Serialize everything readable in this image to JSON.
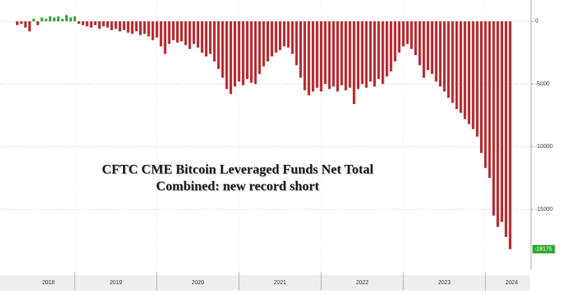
{
  "chart_data": {
    "type": "bar",
    "annotation": [
      "CFTC CME Bitcoin Leveraged Funds Net Total",
      "Combined: new record short"
    ],
    "x": [
      2018.3,
      2018.35,
      2018.4,
      2018.45,
      2018.5,
      2018.55,
      2018.6,
      2018.65,
      2018.7,
      2018.75,
      2018.8,
      2018.85,
      2018.9,
      2018.95,
      2019.0,
      2019.05,
      2019.1,
      2019.15,
      2019.2,
      2019.25,
      2019.3,
      2019.35,
      2019.4,
      2019.45,
      2019.5,
      2019.55,
      2019.6,
      2019.65,
      2019.7,
      2019.75,
      2019.8,
      2019.85,
      2019.9,
      2019.95,
      2020.0,
      2020.05,
      2020.1,
      2020.15,
      2020.2,
      2020.25,
      2020.3,
      2020.35,
      2020.4,
      2020.45,
      2020.5,
      2020.55,
      2020.6,
      2020.65,
      2020.7,
      2020.75,
      2020.8,
      2020.85,
      2020.9,
      2020.95,
      2021.0,
      2021.05,
      2021.1,
      2021.15,
      2021.2,
      2021.25,
      2021.3,
      2021.35,
      2021.4,
      2021.45,
      2021.5,
      2021.55,
      2021.6,
      2021.65,
      2021.7,
      2021.75,
      2021.8,
      2021.85,
      2021.9,
      2021.95,
      2022.0,
      2022.05,
      2022.1,
      2022.15,
      2022.2,
      2022.25,
      2022.3,
      2022.35,
      2022.4,
      2022.45,
      2022.5,
      2022.55,
      2022.6,
      2022.65,
      2022.7,
      2022.75,
      2022.8,
      2022.85,
      2022.9,
      2022.95,
      2023.0,
      2023.05,
      2023.1,
      2023.15,
      2023.2,
      2023.25,
      2023.3,
      2023.35,
      2023.4,
      2023.45,
      2023.5,
      2023.55,
      2023.6,
      2023.65,
      2023.7,
      2023.75,
      2023.8,
      2023.85,
      2023.9,
      2023.95,
      2024.0,
      2024.05,
      2024.1,
      2024.15,
      2024.2,
      2024.25,
      2024.3
    ],
    "values": [
      -300,
      -200,
      -500,
      -800,
      200,
      -300,
      300,
      200,
      400,
      300,
      400,
      200,
      500,
      300,
      400,
      -200,
      -300,
      -400,
      -500,
      -300,
      -600,
      -400,
      -500,
      -700,
      -600,
      -800,
      -700,
      -900,
      -1000,
      -800,
      -1100,
      -1000,
      -1200,
      -1500,
      -1300,
      -2000,
      -2600,
      -1800,
      -1500,
      -1700,
      -1600,
      -1900,
      -2200,
      -1800,
      -2100,
      -2500,
      -2800,
      -2600,
      -3200,
      -3800,
      -4500,
      -5400,
      -5800,
      -5200,
      -4800,
      -5100,
      -4600,
      -4900,
      -5000,
      -4200,
      -3600,
      -3200,
      -2800,
      -2500,
      -2300,
      -2000,
      -2100,
      -2600,
      -3500,
      -4500,
      -5500,
      -5900,
      -5600,
      -5300,
      -5600,
      -5000,
      -5400,
      -5200,
      -5600,
      -5100,
      -5500,
      -5300,
      -6600,
      -5400,
      -5000,
      -5300,
      -4800,
      -5200,
      -4600,
      -5000,
      -4400,
      -4000,
      -3200,
      -2500,
      -2000,
      -1800,
      -2200,
      -2700,
      -3500,
      -4500,
      -3900,
      -4200,
      -4800,
      -5200,
      -5600,
      -6100,
      -6500,
      -7000,
      -7300,
      -7800,
      -8200,
      -8600,
      -9200,
      -10500,
      -11700,
      -12500,
      -15500,
      -16400,
      -16000,
      -17200,
      -18175
    ],
    "color_negative": "#b8262b",
    "color_positive": "#2fa82f",
    "xlim": [
      2018.09,
      2024.53
    ],
    "xticks": [
      {
        "value": 2018.68,
        "label": "2018"
      },
      {
        "value": 2019.5,
        "label": "2019"
      },
      {
        "value": 2020.5,
        "label": "2020"
      },
      {
        "value": 2021.5,
        "label": "2021"
      },
      {
        "value": 2022.5,
        "label": "2022"
      },
      {
        "value": 2023.5,
        "label": "2023"
      },
      {
        "value": 2024.32,
        "label": "2024"
      }
    ],
    "ylim": [
      -19800,
      1700
    ],
    "yticks": [
      0,
      -5000,
      -10000,
      -15000
    ],
    "grid": true,
    "last_value_label": true
  }
}
